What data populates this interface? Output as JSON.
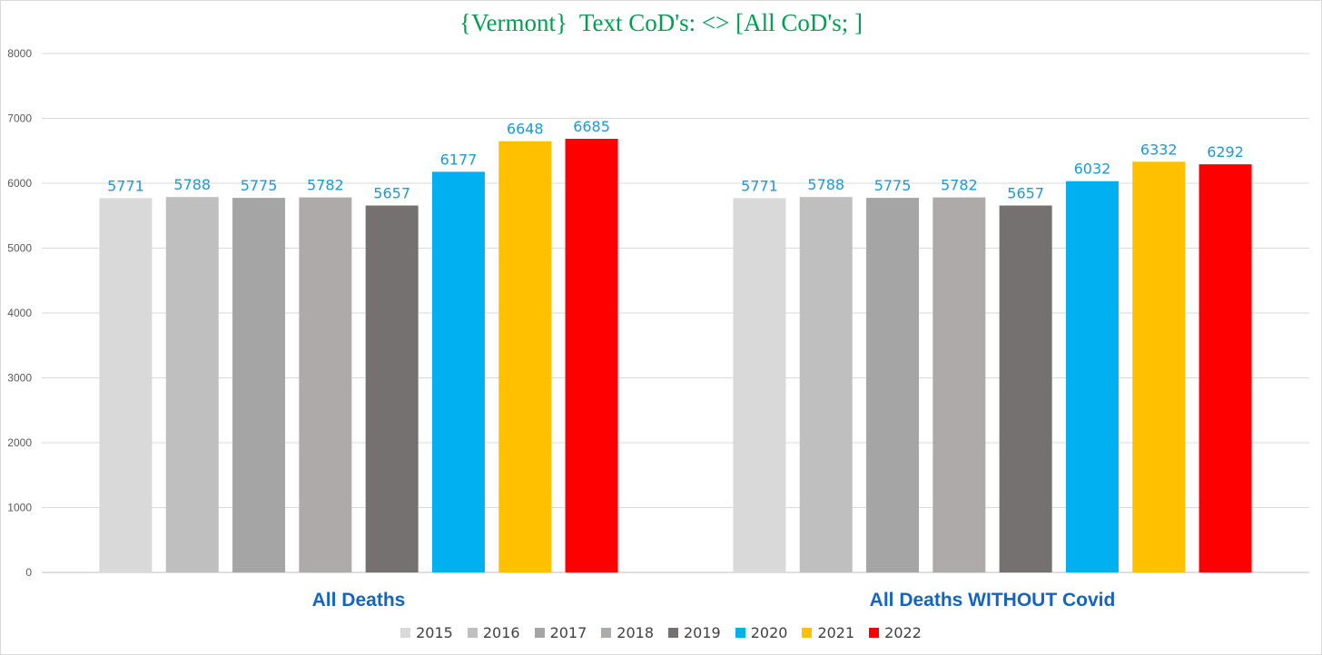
{
  "chart_data": {
    "type": "bar",
    "title": "{Vermont}  Text CoD's: <> [All CoD's; ]",
    "categories": [
      "All Deaths",
      "All Deaths WITHOUT Covid"
    ],
    "series": [
      {
        "name": "2015",
        "values": [
          5771,
          5771
        ],
        "color": "#d9d9d9"
      },
      {
        "name": "2016",
        "values": [
          5788,
          5788
        ],
        "color": "#bfbfbf"
      },
      {
        "name": "2017",
        "values": [
          5775,
          5775
        ],
        "color": "#a5a5a5"
      },
      {
        "name": "2018",
        "values": [
          5782,
          5782
        ],
        "color": "#aeaaaa"
      },
      {
        "name": "2019",
        "values": [
          5657,
          5657
        ],
        "color": "#767171"
      },
      {
        "name": "2020",
        "values": [
          6177,
          6032
        ],
        "color": "#00b0f0"
      },
      {
        "name": "2021",
        "values": [
          6648,
          6332
        ],
        "color": "#ffc000"
      },
      {
        "name": "2022",
        "values": [
          6685,
          6292
        ],
        "color": "#ff0000"
      }
    ],
    "ylim": [
      0,
      8000
    ],
    "yticks": [
      0,
      1000,
      2000,
      3000,
      4000,
      5000,
      6000,
      7000,
      8000
    ],
    "grid": true,
    "legend_position": "bottom",
    "xlabel": "",
    "ylabel": ""
  }
}
